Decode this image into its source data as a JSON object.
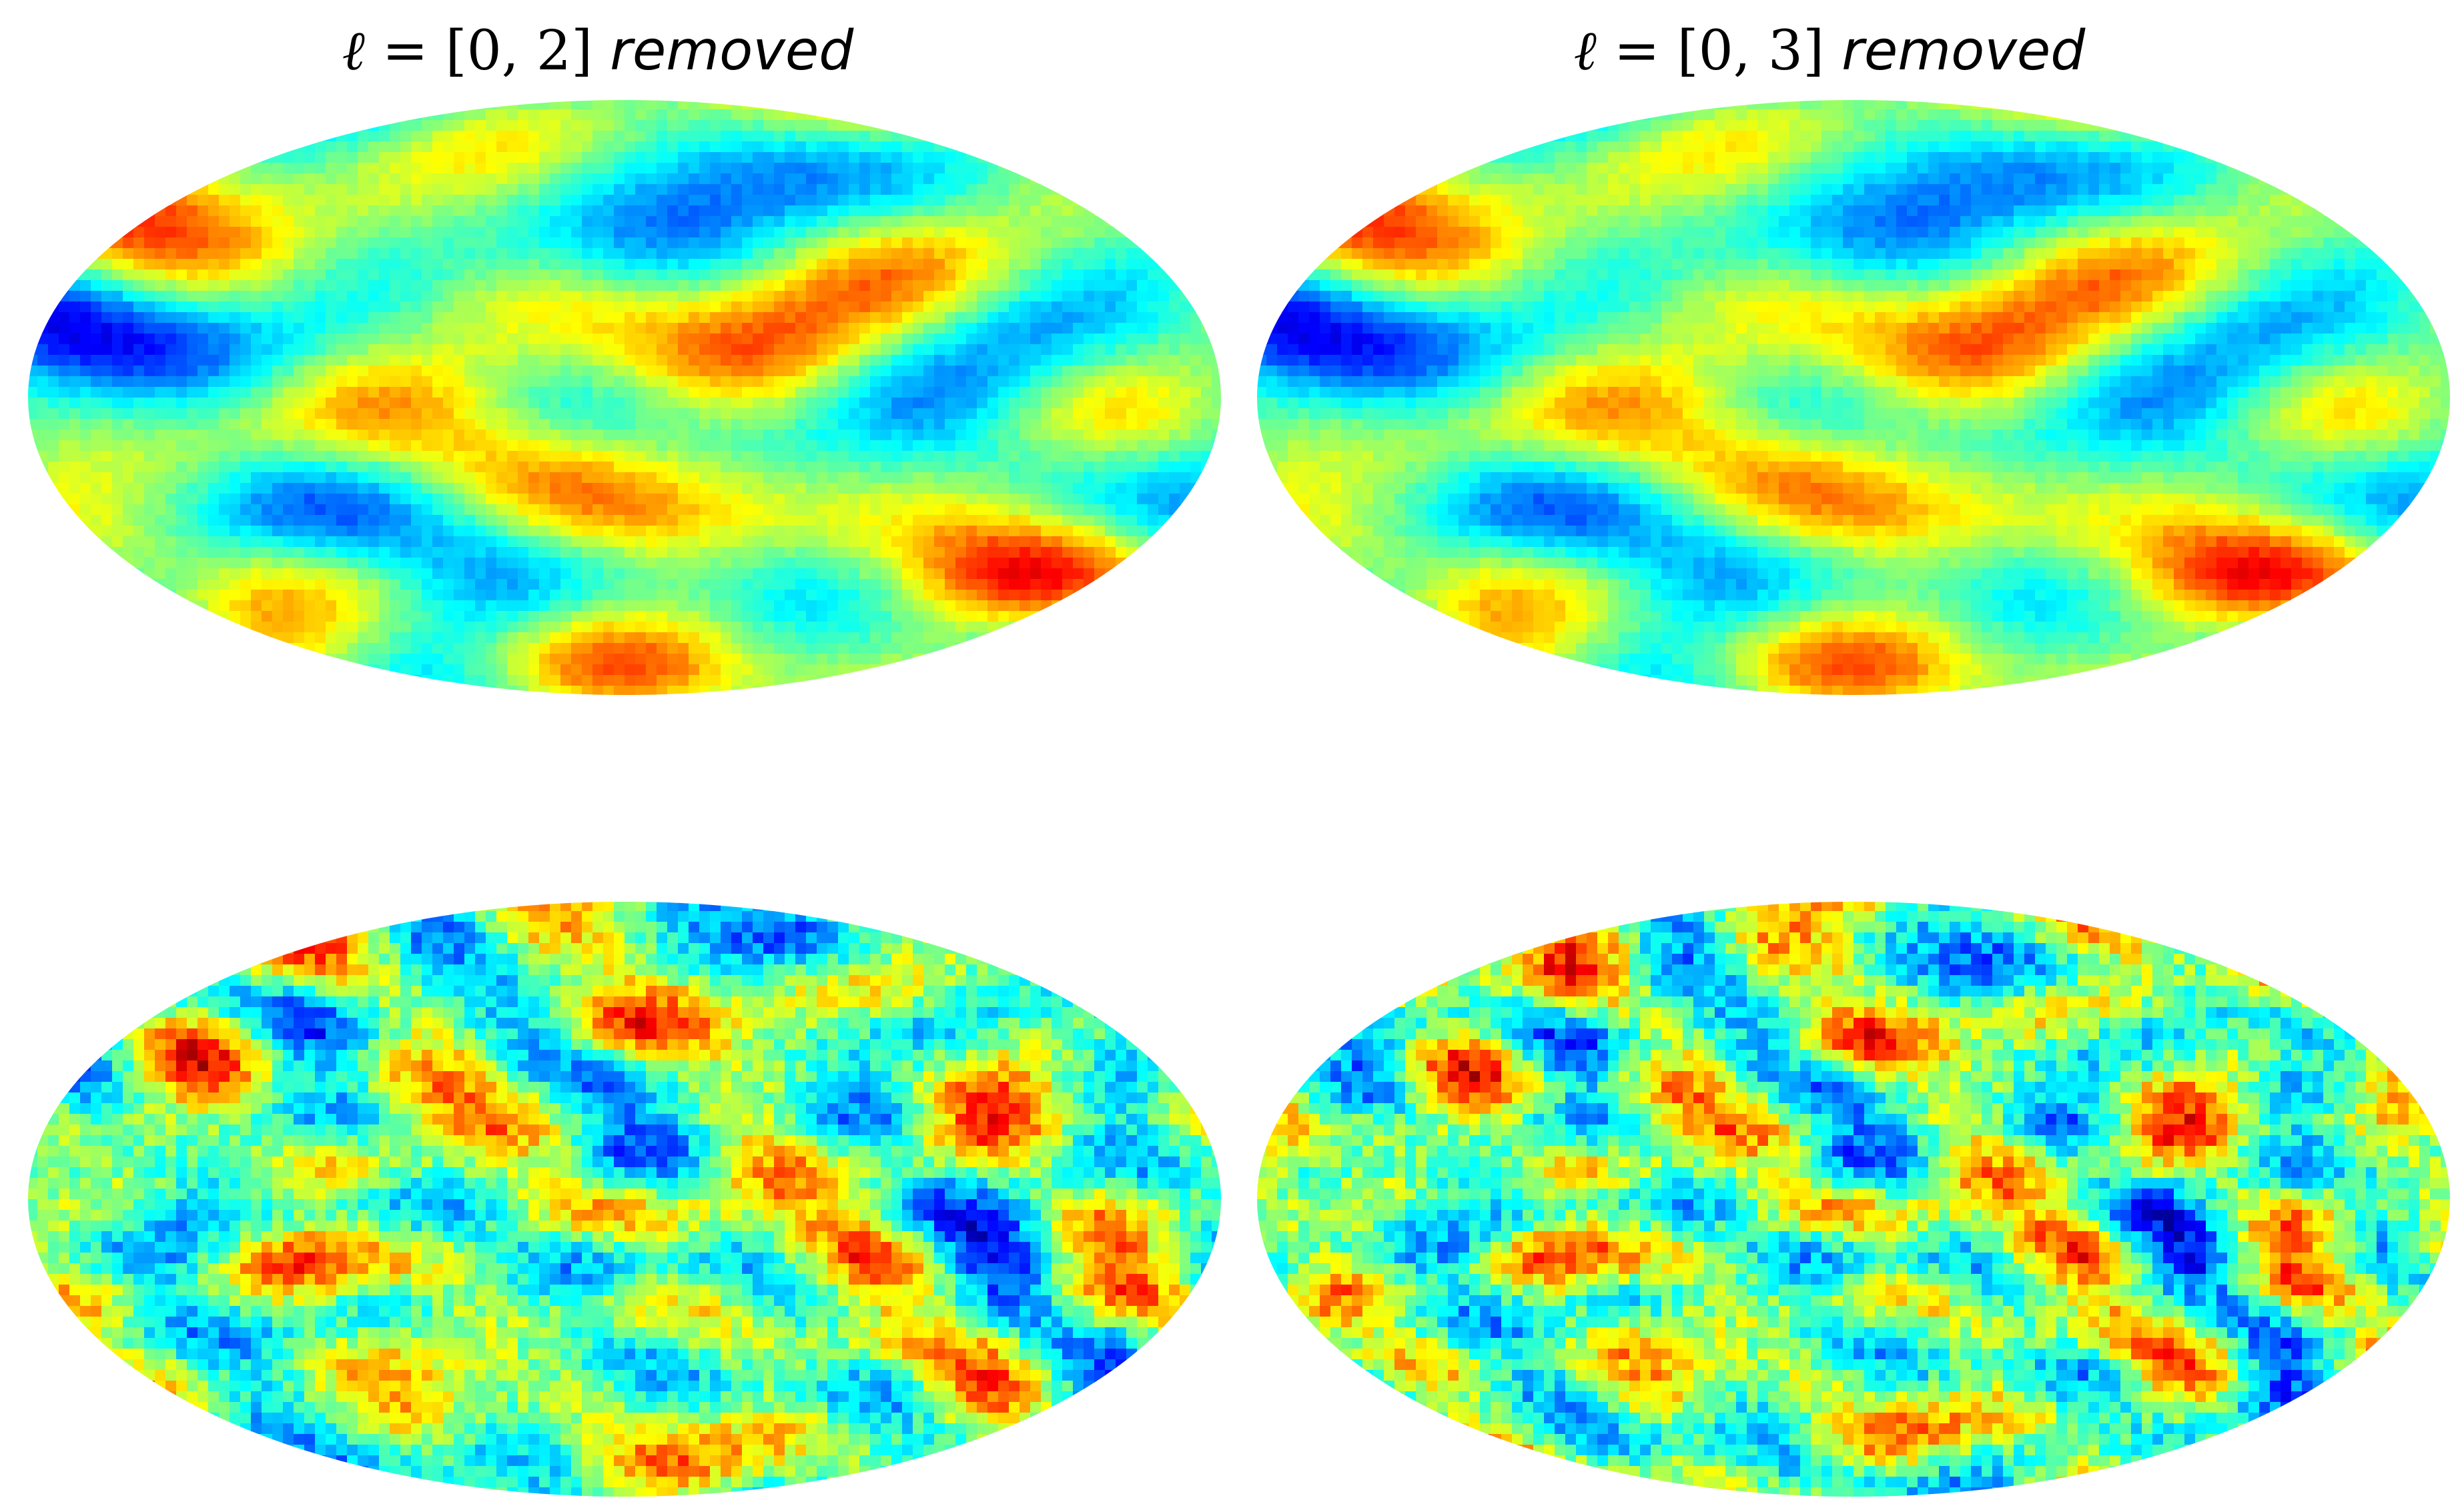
{
  "panels": [
    {
      "id": "top-left",
      "title_symbol": "ℓ",
      "title_math": " = [0, 2] ",
      "title_word": "removed",
      "seed": 11,
      "freq": 1.0,
      "grain": 0.1
    },
    {
      "id": "top-right",
      "title_symbol": "ℓ",
      "title_math": " = [0, 3] ",
      "title_word": "removed",
      "seed": 11,
      "freq": 1.0,
      "grain": 0.1
    },
    {
      "id": "bottom-left",
      "title_symbol": "",
      "title_math": "",
      "title_word": "",
      "seed": 37,
      "freq": 1.7,
      "grain": 0.35
    },
    {
      "id": "bottom-right",
      "title_symbol": "",
      "title_math": "",
      "title_word": "",
      "seed": 37,
      "freq": 1.9,
      "grain": 0.4
    }
  ],
  "projection": "mollweide",
  "colormap": "jet",
  "colormap_stops": [
    "#00007f",
    "#0000ff",
    "#007fff",
    "#00ffff",
    "#7fff7f",
    "#ffff00",
    "#ff7f00",
    "#ff0000",
    "#7f0000"
  ]
}
